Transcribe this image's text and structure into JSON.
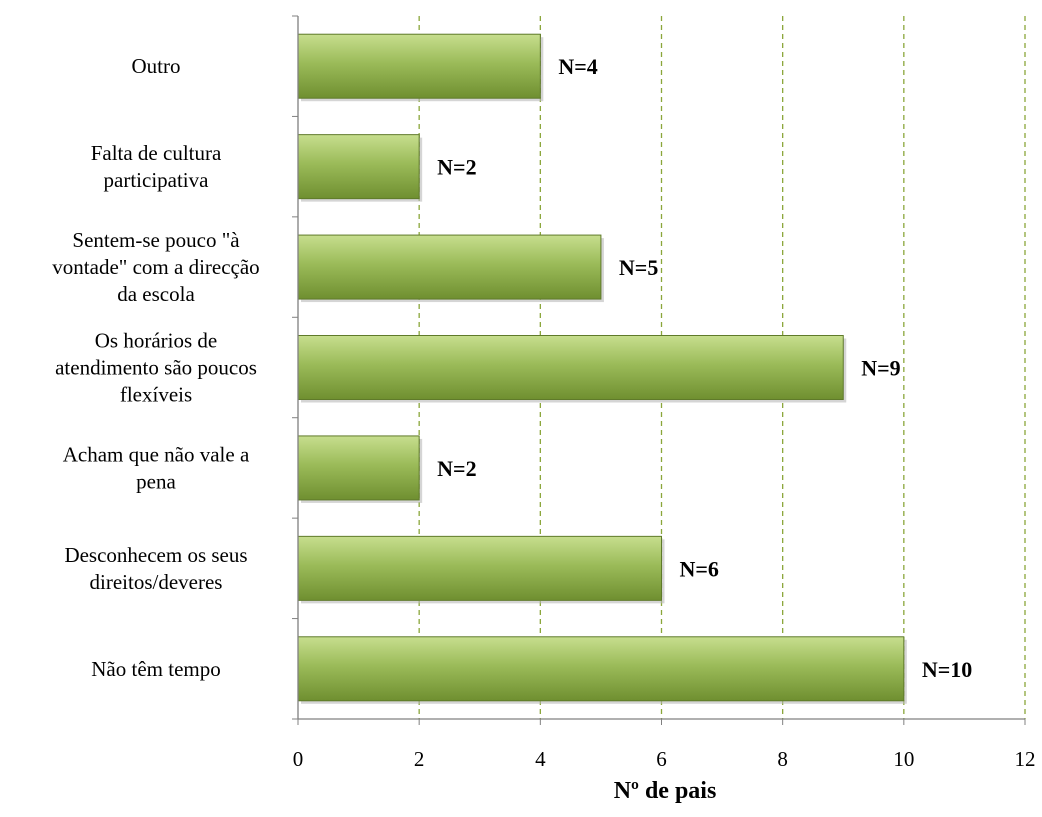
{
  "chart_data": {
    "type": "bar",
    "orientation": "horizontal",
    "categories": [
      [
        "Outro"
      ],
      [
        "Falta de cultura",
        "participativa"
      ],
      [
        "Sentem-se pouco \"à",
        "vontade\" com a direcção",
        "da escola"
      ],
      [
        "Os horários de",
        "atendimento são poucos",
        "flexíveis"
      ],
      [
        "Acham que não vale a",
        "pena"
      ],
      [
        "Desconhecem os seus",
        "direitos/deveres"
      ],
      [
        "Não têm tempo"
      ]
    ],
    "values": [
      4,
      2,
      5,
      9,
      2,
      6,
      10
    ],
    "data_labels": [
      "N=4",
      "N=2",
      "N=5",
      "N=9",
      "N=2",
      "N=6",
      "N=10"
    ],
    "xlabel": "Nº de pais",
    "ylabel": "",
    "title": "",
    "xlim": [
      0,
      12
    ],
    "xticks": [
      "0",
      "2",
      "4",
      "6",
      "8",
      "10",
      "12"
    ],
    "grid": "vertical dashed",
    "legend": "none",
    "colors": {
      "bar_fill_light": "#c7de8e",
      "bar_fill_mid": "#9bbb59",
      "bar_fill_dark": "#6f8f30",
      "bar_stroke": "#5f7a2a",
      "grid": "#8aa63a",
      "axis": "#808080"
    }
  }
}
